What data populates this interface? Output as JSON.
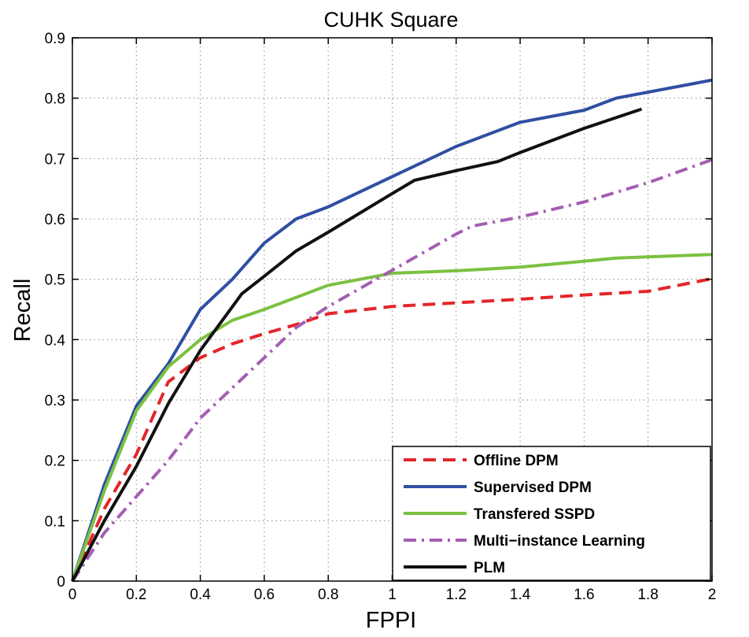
{
  "chart_data": {
    "type": "line",
    "title": "CUHK Square",
    "xlabel": "FPPI",
    "ylabel": "Recall",
    "xlim": [
      0,
      2
    ],
    "ylim": [
      0,
      0.9
    ],
    "grid": true,
    "legend_position": "bottom-right",
    "xticks": [
      "0",
      "0.2",
      "0.4",
      "0.6",
      "0.8",
      "1",
      "1.2",
      "1.4",
      "1.6",
      "1.8",
      "2"
    ],
    "yticks": [
      "0",
      "0.1",
      "0.2",
      "0.3",
      "0.4",
      "0.5",
      "0.6",
      "0.7",
      "0.8",
      "0.9"
    ],
    "series": [
      {
        "name": "Offline DPM",
        "color": "#e3262a",
        "style": "dashed",
        "points": [
          [
            0,
            0
          ],
          [
            0.1,
            0.12
          ],
          [
            0.2,
            0.21
          ],
          [
            0.3,
            0.33
          ],
          [
            0.4,
            0.37
          ],
          [
            0.5,
            0.393
          ],
          [
            0.6,
            0.41
          ],
          [
            0.7,
            0.425
          ],
          [
            0.8,
            0.443
          ],
          [
            1.0,
            0.455
          ],
          [
            1.2,
            0.461
          ],
          [
            1.4,
            0.467
          ],
          [
            1.6,
            0.474
          ],
          [
            1.8,
            0.48
          ],
          [
            2.0,
            0.501
          ]
        ]
      },
      {
        "name": "Supervised DPM",
        "color": "#2f4fa3",
        "style": "solid",
        "points": [
          [
            0,
            0
          ],
          [
            0.1,
            0.16
          ],
          [
            0.2,
            0.29
          ],
          [
            0.3,
            0.36
          ],
          [
            0.4,
            0.45
          ],
          [
            0.5,
            0.5
          ],
          [
            0.6,
            0.56
          ],
          [
            0.7,
            0.6
          ],
          [
            0.8,
            0.62
          ],
          [
            1.0,
            0.67
          ],
          [
            1.2,
            0.72
          ],
          [
            1.4,
            0.76
          ],
          [
            1.6,
            0.78
          ],
          [
            1.7,
            0.8
          ],
          [
            2.0,
            0.83
          ]
        ]
      },
      {
        "name": "Transfered SSPD",
        "color": "#7cc142",
        "style": "solid",
        "points": [
          [
            0,
            0
          ],
          [
            0.1,
            0.15
          ],
          [
            0.2,
            0.282
          ],
          [
            0.3,
            0.355
          ],
          [
            0.4,
            0.4
          ],
          [
            0.5,
            0.432
          ],
          [
            0.6,
            0.45
          ],
          [
            0.8,
            0.49
          ],
          [
            1.0,
            0.51
          ],
          [
            1.2,
            0.514
          ],
          [
            1.4,
            0.52
          ],
          [
            1.6,
            0.53
          ],
          [
            1.7,
            0.535
          ],
          [
            2.0,
            0.541
          ]
        ]
      },
      {
        "name": "Multi−instance Learning",
        "color": "#a55db4",
        "style": "dashdot",
        "points": [
          [
            0,
            0
          ],
          [
            0.1,
            0.08
          ],
          [
            0.2,
            0.14
          ],
          [
            0.3,
            0.2
          ],
          [
            0.4,
            0.27
          ],
          [
            0.5,
            0.32
          ],
          [
            0.6,
            0.37
          ],
          [
            0.7,
            0.42
          ],
          [
            0.8,
            0.455
          ],
          [
            1.0,
            0.515
          ],
          [
            1.1,
            0.545
          ],
          [
            1.2,
            0.575
          ],
          [
            1.25,
            0.588
          ],
          [
            1.4,
            0.603
          ],
          [
            1.6,
            0.628
          ],
          [
            1.8,
            0.66
          ],
          [
            2.0,
            0.698
          ]
        ]
      },
      {
        "name": "PLM",
        "color": "#111111",
        "style": "solid",
        "points": [
          [
            0,
            0
          ],
          [
            0.1,
            0.1
          ],
          [
            0.2,
            0.19
          ],
          [
            0.3,
            0.294
          ],
          [
            0.4,
            0.382
          ],
          [
            0.53,
            0.476
          ],
          [
            0.6,
            0.505
          ],
          [
            0.7,
            0.547
          ],
          [
            0.8,
            0.578
          ],
          [
            1.0,
            0.642
          ],
          [
            1.07,
            0.664
          ],
          [
            1.2,
            0.68
          ],
          [
            1.33,
            0.695
          ],
          [
            1.4,
            0.71
          ],
          [
            1.6,
            0.75
          ],
          [
            1.78,
            0.782
          ]
        ]
      }
    ]
  }
}
